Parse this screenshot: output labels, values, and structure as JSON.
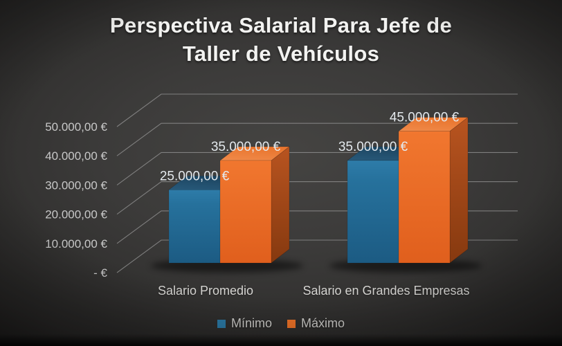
{
  "title": {
    "line1": "Perspectiva Salarial Para Jefe de",
    "line2": "Taller de Vehículos",
    "full": "Perspectiva Salarial Para Jefe de Taller de Vehículos"
  },
  "chart_data": {
    "type": "bar",
    "view": "3d-clustered",
    "title": "Perspectiva Salarial Para Jefe de Taller de Vehículos",
    "categories": [
      "Salario Promedio",
      "Salario en Grandes Empresas"
    ],
    "series": [
      {
        "name": "Mínimo",
        "color": "#2b7aa6",
        "values": [
          25000,
          35000
        ],
        "data_labels": [
          "25.000,00 €",
          "35.000,00 €"
        ]
      },
      {
        "name": "Máximo",
        "color": "#ee7227",
        "values": [
          35000,
          45000
        ],
        "data_labels": [
          "35.000,00 €",
          "45.000,00 €"
        ]
      }
    ],
    "y_axis": {
      "min": 0,
      "max": 50000,
      "tick_interval": 10000,
      "tick_labels_top_to_bottom": [
        "50.000,00 €",
        "40.000,00 €",
        "30.000,00 €",
        "20.000,00 €",
        "10.000,00 €",
        "-   €"
      ]
    },
    "xlabel": "",
    "ylabel": "",
    "grid": true,
    "legend_position": "bottom",
    "currency": "EUR"
  },
  "colors": {
    "background_center": "#454442",
    "background_edge": "#232221",
    "gridline": "#9a9a9a",
    "tick_text": "#c8c8c8",
    "data_label_text": "#e4e9ed",
    "category_text": "#d6d5d2",
    "title_text": "#f3f3f1",
    "blue_front_top": "#2e7ca9",
    "blue_front_bottom": "#1c5b83",
    "blue_top_face": "#234f6c",
    "orange_front_top": "#f1772f",
    "orange_front_bottom": "#e05f1d",
    "orange_top_face_light": "#f08a4a",
    "orange_side_top": "#b85420",
    "orange_side_bottom": "#86390f"
  }
}
